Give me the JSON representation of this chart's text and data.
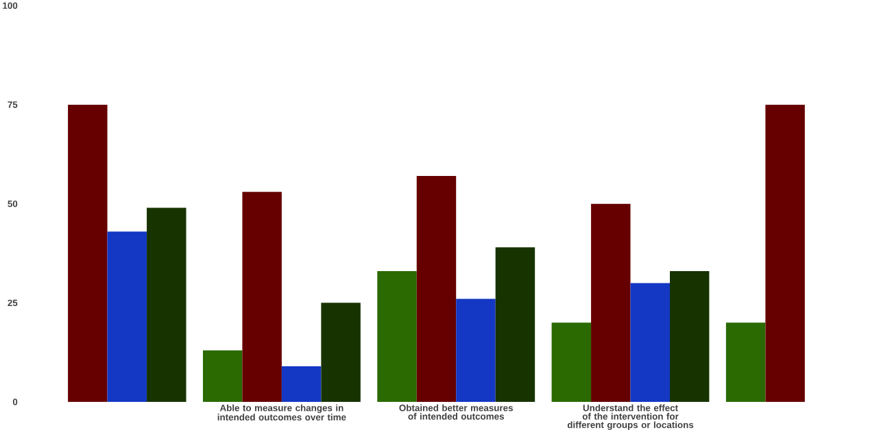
{
  "chart_data": {
    "type": "bar",
    "categories": [
      null,
      "Able to measure changes in intended outcomes over time",
      "Obtained better measures of intended outcomes",
      "Understand the effect of the intervention for different groups or locations",
      null
    ],
    "series": [
      {
        "color": "#2a6a00",
        "values": [
          null,
          13,
          33,
          20,
          20
        ]
      },
      {
        "color": "#660000",
        "values": [
          75,
          53,
          57,
          50,
          75
        ]
      },
      {
        "color": "#1438c4",
        "values": [
          43,
          9,
          26,
          30,
          null
        ]
      },
      {
        "color": "#173300",
        "values": [
          49,
          25,
          39,
          33,
          null
        ]
      }
    ],
    "ylim": [
      0,
      100
    ],
    "yticks": [
      0,
      25,
      50,
      75,
      100
    ],
    "grid": false
  }
}
